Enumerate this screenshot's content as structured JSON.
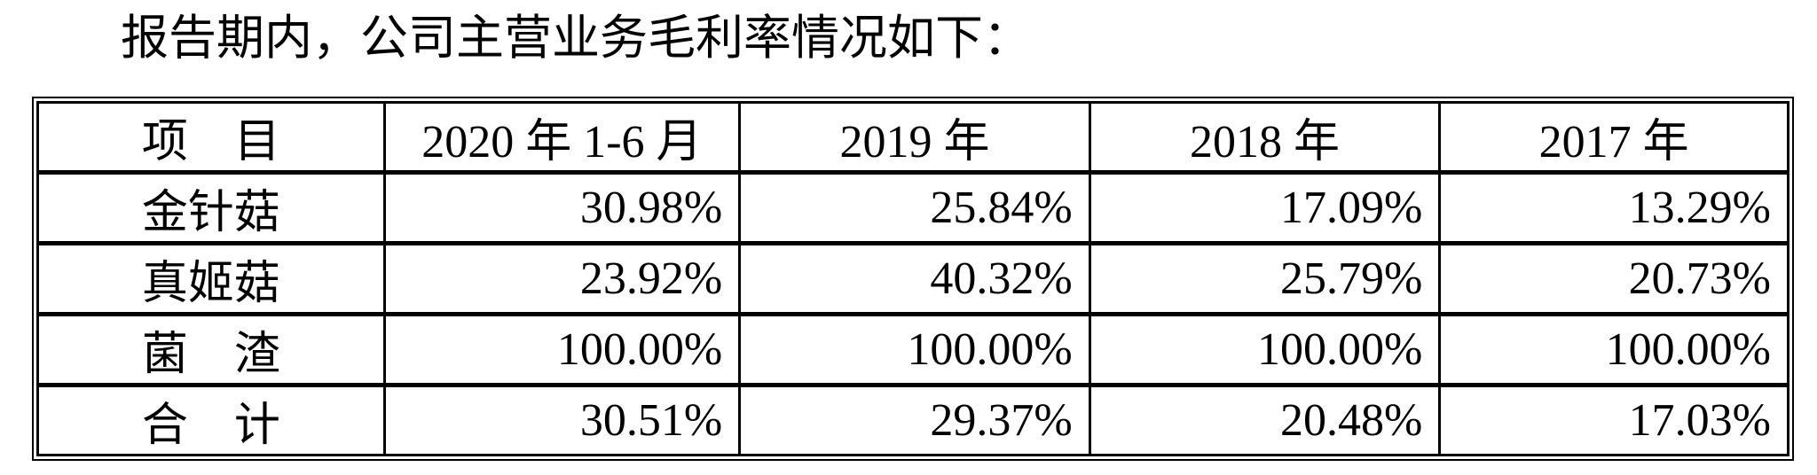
{
  "colors": {
    "background": "#ffffff",
    "text": "#000000",
    "border": "#000000"
  },
  "intro": {
    "text": "报告期内，公司主营业务毛利率情况如下："
  },
  "table": {
    "columns": [
      "项　目",
      "2020 年 1-6 月",
      "2019 年",
      "2018 年",
      "2017 年"
    ],
    "rows": [
      {
        "item": "金针菇",
        "values": [
          "30.98%",
          "25.84%",
          "17.09%",
          "13.29%"
        ]
      },
      {
        "item": "真姬菇",
        "values": [
          "23.92%",
          "40.32%",
          "25.79%",
          "20.73%"
        ]
      },
      {
        "item": "菌　渣",
        "values": [
          "100.00%",
          "100.00%",
          "100.00%",
          "100.00%"
        ]
      },
      {
        "item": "合　计",
        "values": [
          "30.51%",
          "29.37%",
          "20.48%",
          "17.03%"
        ]
      }
    ]
  }
}
